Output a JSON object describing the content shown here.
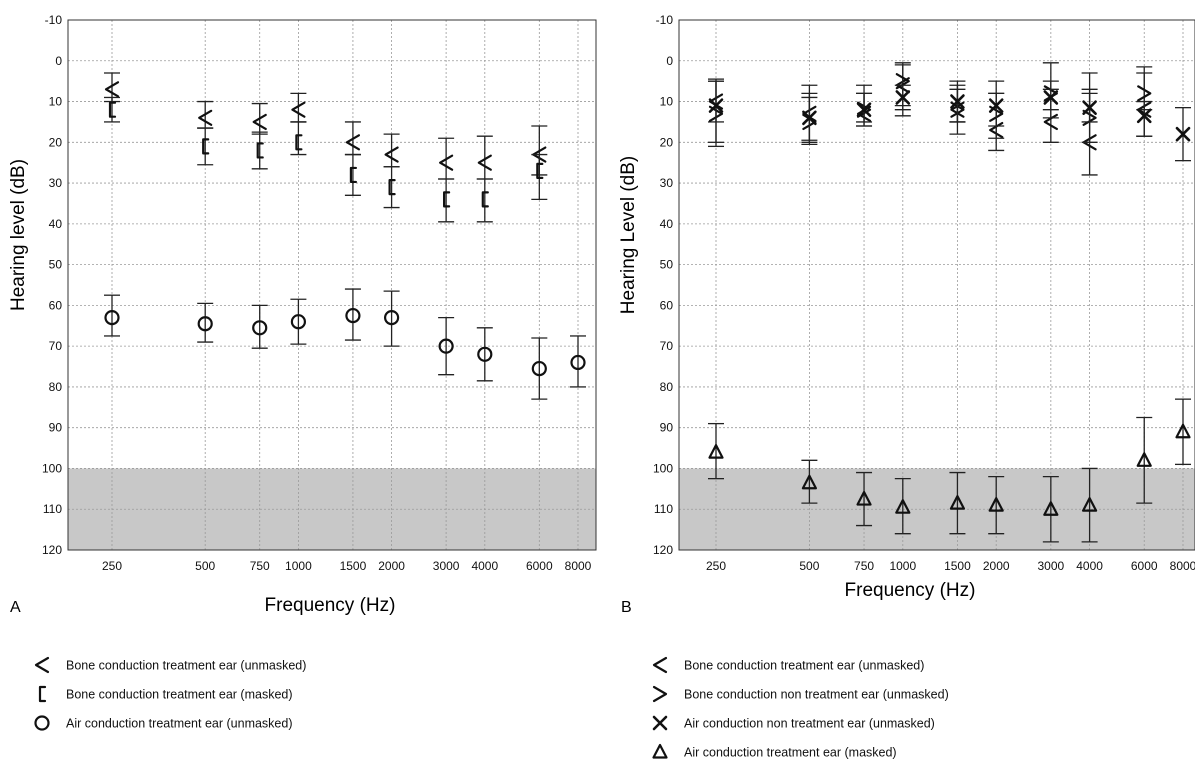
{
  "panels": [
    {
      "label": "A",
      "chart_data": {
        "type": "scatter",
        "xlabel": "Frequency (Hz)",
        "ylabel": "Hearing level (dB)",
        "ylim": [
          -10,
          120
        ],
        "y_inverted": true,
        "x_scale": "log",
        "yticks": [
          "-10",
          "0",
          "10",
          "20",
          "30",
          "40",
          "50",
          "60",
          "70",
          "80",
          "90",
          "100",
          "110",
          "120"
        ],
        "categories": [
          "250",
          "500",
          "750",
          "1000",
          "1500",
          "2000",
          "3000",
          "4000",
          "6000",
          "8000"
        ],
        "shaded_region": {
          "from": 100,
          "to": 120,
          "color": "#c8c8c8"
        },
        "grid": true,
        "series": [
          {
            "name": "Bone conduction treatment ear (unmasked)",
            "marker": "<",
            "x": [
              250,
              500,
              750,
              1000,
              1500,
              2000,
              3000,
              4000,
              6000
            ],
            "y": [
              7,
              14,
              15,
              12,
              20,
              23,
              25,
              25,
              23
            ],
            "yerr_low": [
              3,
              10,
              10.5,
              8,
              15,
              18,
              19,
              18.5,
              16
            ],
            "yerr_high": [
              10,
              16.5,
              18,
              15,
              23,
              26,
              29,
              29,
              28
            ]
          },
          {
            "name": "Bone conduction treatment ear (masked)",
            "marker": "[",
            "x": [
              250,
              500,
              750,
              1000,
              1500,
              2000,
              3000,
              4000,
              6000
            ],
            "y": [
              12,
              21,
              22,
              20,
              28,
              31,
              34,
              34,
              27
            ],
            "yerr_low": [
              9,
              16.5,
              17.5,
              15,
              23,
              26,
              29,
              29,
              23
            ],
            "yerr_high": [
              15,
              25.5,
              26.5,
              23,
              33,
              36,
              39.5,
              39.5,
              34
            ]
          },
          {
            "name": "Air conduction treatment ear (unmasked)",
            "marker": "o",
            "x": [
              250,
              500,
              750,
              1000,
              1500,
              2000,
              3000,
              4000,
              6000,
              8000
            ],
            "y": [
              63,
              64.5,
              65.5,
              64,
              62.5,
              63,
              70,
              72,
              75.5,
              74
            ],
            "yerr_low": [
              57.5,
              59.5,
              60,
              58.5,
              56,
              56.5,
              63,
              65.5,
              68,
              67.5
            ],
            "yerr_high": [
              67.5,
              69,
              70.5,
              69.5,
              68.5,
              70,
              77,
              78.5,
              83,
              80
            ]
          }
        ]
      }
    },
    {
      "label": "B",
      "chart_data": {
        "type": "scatter",
        "xlabel": "Frequency (Hz)",
        "ylabel": "Hearing Level (dB)",
        "ylim": [
          -10,
          120
        ],
        "y_inverted": true,
        "x_scale": "log",
        "yticks": [
          "-10",
          "0",
          "10",
          "20",
          "30",
          "40",
          "50",
          "60",
          "70",
          "80",
          "90",
          "100",
          "110",
          "120"
        ],
        "categories": [
          "250",
          "500",
          "750",
          "1000",
          "1500",
          "2000",
          "3000",
          "4000",
          "6000",
          "8000"
        ],
        "shaded_region": {
          "from": 100,
          "to": 120,
          "color": "#c8c8c8"
        },
        "grid": true,
        "series": [
          {
            "name": "Bone conduction treatment ear (unmasked)",
            "marker": "<",
            "x": [
              250,
              500,
              750,
              1000,
              1500,
              2000,
              3000,
              4000,
              6000
            ],
            "y": [
              10,
              13,
              13,
              6,
              12,
              17,
              15,
              20,
              12
            ],
            "yerr_low": [
              4.5,
              6,
              6,
              0.5,
              5,
              5,
              0.5,
              3,
              1.5
            ],
            "yerr_high": [
              15,
              20,
              16,
              13.5,
              18,
              22,
              20,
              28,
              18.5
            ]
          },
          {
            "name": "Bone conduction non treatment ear (unmasked)",
            "marker": ">",
            "x": [
              250,
              500,
              750,
              1000,
              1500,
              2000,
              3000,
              4000,
              6000
            ],
            "y": [
              13,
              15,
              12,
              5,
              12,
              13,
              8,
              14,
              8
            ],
            "yerr_low": [
              5,
              9,
              8,
              1,
              7,
              8,
              5,
              7,
              3
            ],
            "yerr_high": [
              20,
              20.5,
              15,
              11,
              15,
              19,
              14,
              20,
              12
            ]
          },
          {
            "name": "Air conduction non treatment ear (unmasked)",
            "marker": "x",
            "x": [
              250,
              500,
              750,
              1000,
              1500,
              2000,
              3000,
              4000,
              6000,
              8000
            ],
            "y": [
              11,
              14,
              12,
              9,
              10,
              11,
              9,
              11.5,
              13.5,
              18
            ],
            "yerr_low": [
              5,
              8,
              8,
              6,
              6,
              8,
              7,
              8,
              10,
              11.5
            ],
            "yerr_high": [
              21,
              19.5,
              16,
              12,
              15,
              16,
              12,
              15,
              18.5,
              24.5
            ]
          },
          {
            "name": "Air conduction treatment ear (masked)",
            "marker": "triangle",
            "x": [
              250,
              500,
              750,
              1000,
              1500,
              2000,
              3000,
              4000,
              6000,
              8000
            ],
            "y": [
              96,
              103.5,
              107.5,
              109.5,
              108.5,
              109,
              110,
              109,
              98,
              91
            ],
            "yerr_low": [
              89,
              98,
              101,
              102.5,
              101,
              102,
              102,
              100,
              87.5,
              83
            ],
            "yerr_high": [
              102.5,
              108.5,
              114,
              116,
              116,
              116,
              118,
              118,
              108.5,
              99
            ]
          }
        ]
      }
    }
  ]
}
